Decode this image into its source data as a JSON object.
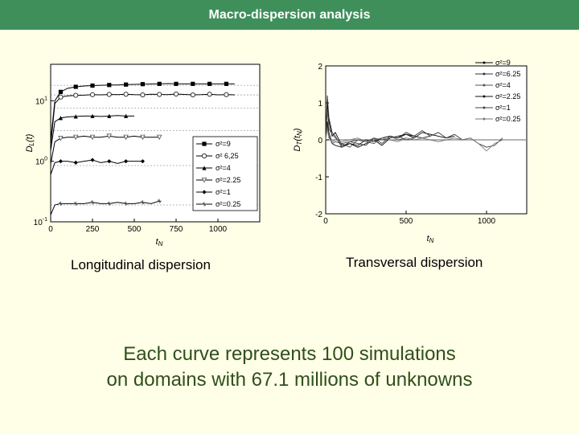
{
  "slide": {
    "title": "Macro-dispersion analysis",
    "caption_left": "Longitudinal dispersion",
    "caption_right": "Transversal dispersion",
    "summary_line1": "Each curve represents 100 simulations",
    "summary_line2": "on domains with 67.1 millions of unknowns"
  },
  "chart_data": [
    {
      "type": "line",
      "ylabel": "D_L(t)",
      "xlabel": "t_N",
      "xlim": [
        0,
        1250
      ],
      "ylog": true,
      "ylim": [
        0.1,
        40
      ],
      "xticks": [
        0,
        250,
        500,
        750,
        1000
      ],
      "yticks": [
        {
          "value": 0.1,
          "base": "10",
          "exp": "-1"
        },
        {
          "value": 1,
          "base": "10",
          "exp": "0"
        },
        {
          "value": 10,
          "base": "10",
          "exp": "1"
        }
      ],
      "reference_lines": [
        0.19,
        0.85,
        3.2,
        7.5,
        12.5,
        18
      ],
      "legend": {
        "placement": "bottom-right",
        "entries": [
          "σ²=9",
          "σ² 6,25",
          "σ²=4",
          "σ²=2.25",
          "σ²=1",
          "σ²=0.25"
        ]
      },
      "series": [
        {
          "name": "σ²=9",
          "marker": "square",
          "x": [
            0,
            25,
            60,
            100,
            150,
            200,
            250,
            300,
            350,
            400,
            450,
            500,
            550,
            600,
            650,
            700,
            750,
            800,
            850,
            900,
            950,
            1000,
            1050,
            1100
          ],
          "y": [
            2.2,
            10,
            14,
            16,
            17,
            17.5,
            17.8,
            18,
            18.2,
            18.2,
            18.5,
            18.6,
            18.8,
            18.9,
            19.0,
            19.2,
            19.0,
            19.0,
            19.0,
            19.0,
            19.0,
            19.0,
            19.0,
            19.0
          ]
        },
        {
          "name": "σ² 6,25",
          "marker": "circle",
          "x": [
            0,
            25,
            60,
            100,
            150,
            200,
            250,
            300,
            350,
            400,
            450,
            500,
            550,
            600,
            650,
            700,
            750,
            800,
            850,
            900,
            950,
            1000,
            1050,
            1100
          ],
          "y": [
            1.8,
            9,
            11.5,
            12,
            12.3,
            12.4,
            12.6,
            12.5,
            12.7,
            12.6,
            12.8,
            12.6,
            12.5,
            12.8,
            12.7,
            12.6,
            12.9,
            12.7,
            12.5,
            12.6,
            12.8,
            12.5,
            12.6,
            12.5
          ]
        },
        {
          "name": "σ²=4",
          "marker": "triangle",
          "x": [
            0,
            25,
            60,
            100,
            150,
            200,
            250,
            300,
            350,
            400,
            450,
            500
          ],
          "y": [
            1.5,
            4.5,
            5.2,
            5.4,
            5.5,
            5.6,
            5.6,
            5.5,
            5.6,
            5.7,
            5.6,
            5.6
          ]
        },
        {
          "name": "σ²=2.25",
          "marker": "triangle-down",
          "x": [
            0,
            25,
            60,
            100,
            150,
            200,
            250,
            300,
            350,
            400,
            450,
            500,
            550,
            600,
            650
          ],
          "y": [
            0.9,
            2.1,
            2.4,
            2.5,
            2.5,
            2.6,
            2.5,
            2.5,
            2.6,
            2.5,
            2.5,
            2.6,
            2.5,
            2.5,
            2.5
          ]
        },
        {
          "name": "σ²=1",
          "marker": "diamond",
          "x": [
            0,
            25,
            60,
            100,
            150,
            200,
            250,
            300,
            350,
            400,
            450,
            500,
            550
          ],
          "y": [
            0.6,
            0.95,
            1.0,
            1.0,
            0.95,
            1.0,
            1.05,
            0.95,
            1.0,
            0.92,
            1.0,
            1.0,
            1.0
          ]
        },
        {
          "name": "σ²=0.25",
          "marker": "star",
          "x": [
            0,
            25,
            60,
            100,
            150,
            200,
            250,
            300,
            350,
            400,
            450,
            500,
            550,
            600,
            650
          ],
          "y": [
            0.13,
            0.19,
            0.2,
            0.2,
            0.2,
            0.2,
            0.21,
            0.2,
            0.2,
            0.21,
            0.2,
            0.2,
            0.21,
            0.2,
            0.22
          ]
        }
      ]
    },
    {
      "type": "line",
      "ylabel": "D_T(t_N)",
      "xlabel": "t_N",
      "xlim": [
        0,
        1250
      ],
      "ylim": [
        -2,
        2
      ],
      "xticks": [
        0,
        500,
        1000
      ],
      "yticks": [
        -2,
        -1,
        0,
        1,
        2
      ],
      "reference_lines": [
        0
      ],
      "legend": {
        "placement": "top-right",
        "entries": [
          "σ²=9",
          "σ²=6.25",
          "σ²=4",
          "σ²=2.25",
          "σ²=1",
          "σ²=0.25"
        ]
      },
      "series": [
        {
          "name": "σ²=9",
          "x": [
            0,
            10,
            20,
            40,
            60,
            100,
            150,
            200,
            250,
            300,
            350,
            400,
            450,
            500,
            550,
            600,
            650,
            700,
            750,
            800
          ],
          "y": [
            0,
            1.0,
            0.5,
            0.1,
            0.2,
            -0.15,
            -0.1,
            -0.2,
            -0.1,
            0,
            -0.15,
            0.05,
            0.1,
            0.15,
            0.05,
            0.2,
            0.15,
            0.1,
            0.05,
            0.1
          ]
        },
        {
          "name": "σ²=6.25",
          "x": [
            0,
            10,
            20,
            40,
            60,
            100,
            150,
            200,
            250,
            300,
            350,
            400,
            450,
            500,
            550,
            600,
            650,
            700,
            750,
            800,
            850,
            900,
            950,
            1000,
            1050,
            1100
          ],
          "y": [
            0,
            1.2,
            0.6,
            0.2,
            0.1,
            -0.2,
            -0.05,
            -0.1,
            -0.15,
            0.05,
            -0.1,
            0.1,
            0.05,
            0.2,
            0.1,
            0.25,
            0.1,
            0.2,
            0.05,
            0.15,
            0,
            0.05,
            -0.1,
            -0.2,
            -0.15,
            0.05
          ]
        },
        {
          "name": "σ²=4",
          "x": [
            0,
            10,
            20,
            40,
            60,
            100,
            150,
            200,
            250,
            300,
            350,
            400,
            450,
            500
          ],
          "y": [
            0,
            0.8,
            0.3,
            0.15,
            0.05,
            -0.1,
            -0.2,
            0,
            -0.05,
            -0.1,
            0.05,
            0.1,
            0,
            0.05
          ]
        },
        {
          "name": "σ²=2.25",
          "x": [
            0,
            10,
            20,
            40,
            60,
            100,
            150,
            200,
            250,
            300,
            350,
            400,
            450,
            500,
            550,
            600,
            650
          ],
          "y": [
            0,
            0.5,
            0.2,
            -0.1,
            -0.15,
            -0.2,
            -0.1,
            -0.15,
            0,
            -0.05,
            0.05,
            0.1,
            0.05,
            0.15,
            0.1,
            0.05,
            0.1
          ]
        },
        {
          "name": "σ²=1",
          "x": [
            0,
            10,
            20,
            40,
            60,
            100,
            150,
            200,
            250,
            300,
            350,
            400,
            450,
            500,
            550
          ],
          "y": [
            0,
            0.4,
            0.1,
            -0.1,
            -0.05,
            -0.1,
            -0.05,
            0,
            -0.05,
            0.05,
            0,
            0.05,
            0.1,
            0,
            0.05
          ]
        },
        {
          "name": "σ²=0.25",
          "x": [
            0,
            10,
            20,
            40,
            60,
            100,
            150,
            200,
            250,
            300,
            350,
            400,
            450,
            500,
            550,
            600,
            650,
            700,
            750,
            800,
            850,
            900,
            950,
            1000,
            1050,
            1100
          ],
          "y": [
            0,
            0.3,
            0.05,
            -0.05,
            0,
            -0.05,
            0,
            0.05,
            -0.05,
            0,
            0.05,
            0,
            -0.05,
            0.05,
            0,
            0.05,
            0,
            -0.05,
            0,
            0.05,
            0,
            0.05,
            -0.1,
            -0.3,
            -0.1,
            0
          ]
        }
      ]
    }
  ]
}
